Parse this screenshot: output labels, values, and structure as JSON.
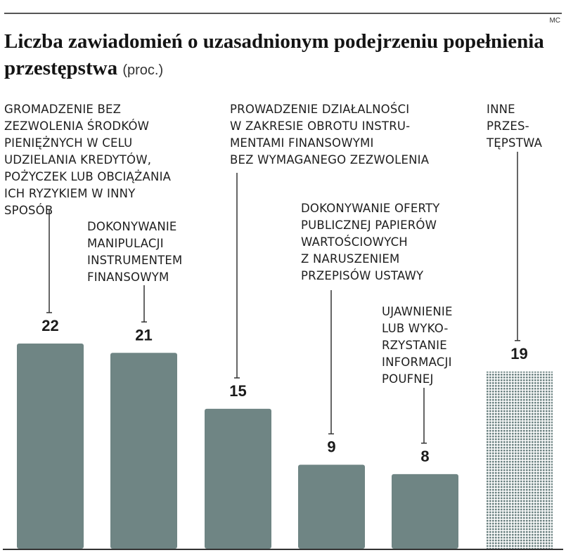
{
  "credit": "MC",
  "title": "Liczba zawiadomień o uzasadnionym podejrzeniu popełnienia przestępstwa",
  "unit": "(proc.)",
  "colors": {
    "bar": "#6f8584",
    "pattern": "#6f8584",
    "axis": "#333333",
    "leader": "#333333"
  },
  "chart_data": {
    "type": "bar",
    "title": "Liczba zawiadomień o uzasadnionym podejrzeniu popełnienia przestępstwa",
    "unit": "(proc.)",
    "ylim": [
      0,
      30
    ],
    "grid": false,
    "categories": [
      "GROMADZENIE BEZ\nZEZWOLENIA ŚRODKÓW\nPIENIĘŻNYCH W CELU\nUDZIELANIA KREDYTÓW,\nPOŻYCZEK LUB OBCIĄŻANIA\nICH RYZYKIEM W INNY\nSPOSÓB",
      "DOKONYWANIE\nMANIPULACJI\nINSTRUMENTEM\nFINANSOWYM",
      "PROWADZENIE DZIAŁALNOŚCI\nW ZAKRESIE OBROTU INSTRU-\nMENTAMI FINANSOWYMI\nBEZ WYMAGANEGO ZEZWOLENIA",
      "DOKONYWANIE OFERTY\nPUBLICZNEJ PAPIERÓW\nWARTOŚCIOWYCH\nZ NARUSZENIEM\nPRZEPISÓW USTAWY",
      "UJAWNIENIE\nLUB WYKO-\nRZYSTANIE\nINFORMACJI\nPOUFNEJ",
      "INNE\nPRZES-\nTĘPSTWA"
    ],
    "values": [
      22,
      21,
      15,
      9,
      8,
      19
    ],
    "value_labels": [
      "22",
      "21",
      "15",
      "9",
      "8",
      "19"
    ],
    "styles": [
      "solid",
      "solid",
      "solid",
      "solid",
      "solid",
      "dotted"
    ]
  }
}
